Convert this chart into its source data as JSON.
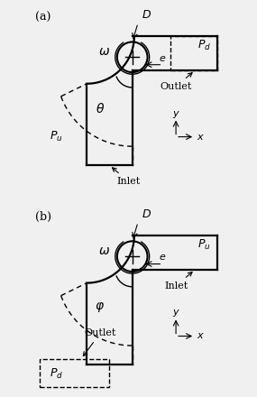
{
  "fig_width": 2.85,
  "fig_height": 4.4,
  "dpi": 100,
  "bg_color": "#f0f0f0",
  "panel_bg": "#f0f0f0",
  "line_color": "black",
  "dashed_color": "black",
  "panel_a_label": "(a)",
  "panel_b_label": "(b)",
  "panels": [
    {
      "label": "(a)",
      "angle_label": "θ",
      "pressure_inlet": "P_u",
      "pressure_outlet": "P_d",
      "inlet_label": "Inlet",
      "outlet_label": "Outlet",
      "omega_label": "ω",
      "D_label": "D",
      "e_label": "e"
    },
    {
      "label": "(b)",
      "angle_label": "φ",
      "pressure_inlet": "P_u",
      "pressure_outlet": "P_d",
      "inlet_label": "Inlet",
      "outlet_label": "Outlet",
      "omega_label": "ω",
      "D_label": "D",
      "e_label": "e"
    }
  ]
}
